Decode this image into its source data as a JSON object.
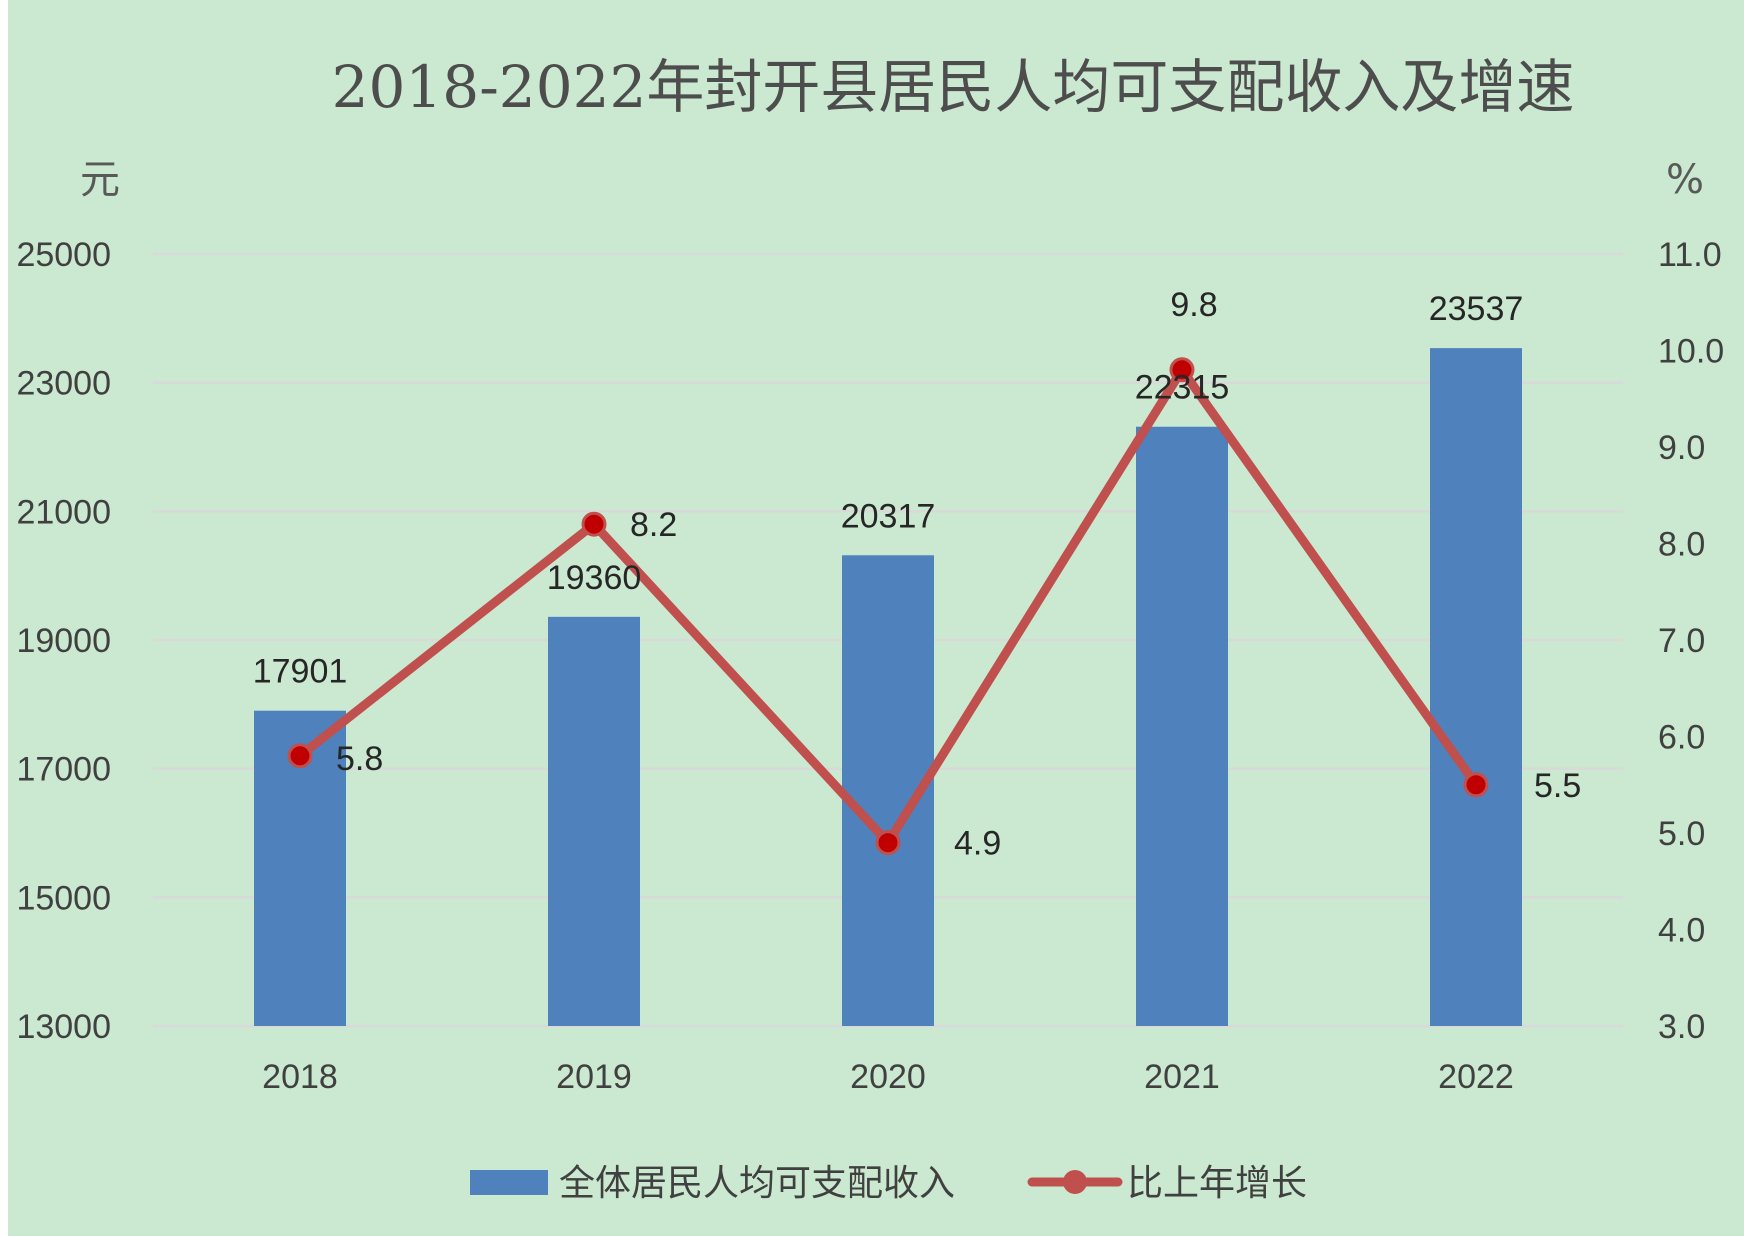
{
  "chart_data": {
    "type": "bar",
    "title": "2018-2022年封开县居民人均可支配收入及增速",
    "categories": [
      "2018",
      "2019",
      "2020",
      "2021",
      "2022"
    ],
    "y_left": {
      "unit": "元",
      "ylim": [
        13000,
        25000
      ],
      "ticks": [
        "13000",
        "15000",
        "17000",
        "19000",
        "21000",
        "23000",
        "25000"
      ]
    },
    "y_right": {
      "unit": "%",
      "ylim": [
        3.0,
        11.0
      ],
      "ticks": [
        "3.0",
        "4.0",
        "5.0",
        "6.0",
        "7.0",
        "8.0",
        "9.0",
        "10.0",
        "11.0"
      ]
    },
    "series": [
      {
        "name": "全体居民人均可支配收入",
        "type": "bar",
        "axis": "left",
        "color": "#4f81bd",
        "values": [
          17901,
          19360,
          20317,
          22315,
          23537
        ],
        "labels": [
          "17901",
          "19360",
          "20317",
          "22315",
          "23537"
        ]
      },
      {
        "name": "比上年增长",
        "type": "line",
        "axis": "right",
        "color": "#c0504d",
        "marker_color": "#c00000",
        "values": [
          5.8,
          8.2,
          4.9,
          9.8,
          5.5
        ],
        "labels": [
          "5.8",
          "8.2",
          "4.9",
          "9.8",
          "5.5"
        ]
      }
    ],
    "grid": true,
    "legend": "bottom",
    "background": "#cbe9d1"
  }
}
